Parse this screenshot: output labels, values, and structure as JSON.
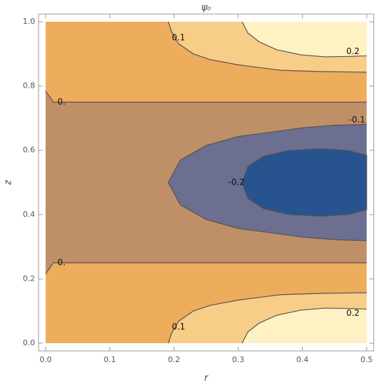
{
  "chart_data": {
    "type": "contour",
    "title": "ψ₀",
    "x_label": "r",
    "y_label": "z",
    "xlim": [
      -0.011,
      0.511
    ],
    "ylim": [
      -0.024,
      1.024
    ],
    "xticks": [
      {
        "value": 0,
        "label": "0.0"
      },
      0.1,
      0.2,
      0.3,
      0.4,
      0.5
    ],
    "yticks": [
      {
        "value": 0,
        "label": "0.0"
      },
      0.2,
      0.4,
      0.6,
      0.8,
      {
        "value": 1,
        "label": "1.0"
      }
    ],
    "background": "#eeac5d",
    "line_color": "#555555",
    "contours": [
      {
        "level": {
          "value": 0,
          "label": "0."
        },
        "fill": "#bf9067",
        "points": [
          [
            0,
            0.785
          ],
          [
            0.012,
            0.75
          ],
          [
            0.5,
            0.75
          ],
          null,
          [
            0.5,
            0.25
          ],
          [
            0.012,
            0.25
          ],
          [
            0,
            0.215
          ]
        ]
      },
      {
        "level": 0.1,
        "fill": "#f7cd87",
        "points": [
          [
            0.191,
            1
          ],
          [
            0.196,
            0.97
          ],
          [
            0.207,
            0.932
          ],
          [
            0.23,
            0.9
          ],
          [
            0.257,
            0.882
          ],
          [
            0.3,
            0.866
          ],
          [
            0.366,
            0.849
          ],
          [
            0.43,
            0.845
          ],
          [
            0.5,
            0.843
          ]
        ]
      },
      {
        "level": 0.1,
        "fill": "#f7cd87",
        "points": [
          [
            0.191,
            0
          ],
          [
            0.196,
            0.03
          ],
          [
            0.207,
            0.068
          ],
          [
            0.23,
            0.1
          ],
          [
            0.257,
            0.118
          ],
          [
            0.3,
            0.134
          ],
          [
            0.366,
            0.151
          ],
          [
            0.43,
            0.155
          ],
          [
            0.5,
            0.157
          ]
        ]
      },
      {
        "level": 0.2,
        "fill": "#fef1c3",
        "points": [
          [
            0.306,
            1
          ],
          [
            0.315,
            0.965
          ],
          [
            0.333,
            0.937
          ],
          [
            0.36,
            0.913
          ],
          [
            0.398,
            0.897
          ],
          [
            0.435,
            0.891
          ],
          [
            0.47,
            0.892
          ],
          [
            0.5,
            0.894
          ]
        ]
      },
      {
        "level": 0.2,
        "fill": "#fef1c3",
        "points": [
          [
            0.306,
            0
          ],
          [
            0.315,
            0.035
          ],
          [
            0.333,
            0.063
          ],
          [
            0.36,
            0.087
          ],
          [
            0.398,
            0.103
          ],
          [
            0.435,
            0.109
          ],
          [
            0.47,
            0.108
          ],
          [
            0.5,
            0.106
          ]
        ]
      },
      {
        "level": -0.1,
        "fill": "#6c6f8f",
        "points": [
          [
            0.5,
            0.681
          ],
          [
            0.45,
            0.678
          ],
          [
            0.4,
            0.67
          ],
          [
            0.3,
            0.643
          ],
          [
            0.25,
            0.615
          ],
          [
            0.21,
            0.57
          ],
          [
            0.191,
            0.5
          ],
          [
            0.21,
            0.43
          ],
          [
            0.25,
            0.385
          ],
          [
            0.3,
            0.357
          ],
          [
            0.4,
            0.33
          ],
          [
            0.45,
            0.322
          ],
          [
            0.5,
            0.319
          ]
        ]
      },
      {
        "level": -0.2,
        "fill": "#27548f",
        "points": [
          [
            0.306,
            0.5
          ],
          [
            0.315,
            0.55
          ],
          [
            0.34,
            0.582
          ],
          [
            0.38,
            0.6
          ],
          [
            0.43,
            0.605
          ],
          [
            0.47,
            0.6
          ],
          [
            0.5,
            0.585
          ],
          [
            0.5,
            0.415
          ],
          [
            0.47,
            0.4
          ],
          [
            0.43,
            0.395
          ],
          [
            0.38,
            0.4
          ],
          [
            0.34,
            0.418
          ],
          [
            0.315,
            0.45
          ],
          [
            0.306,
            0.5
          ]
        ]
      }
    ]
  }
}
